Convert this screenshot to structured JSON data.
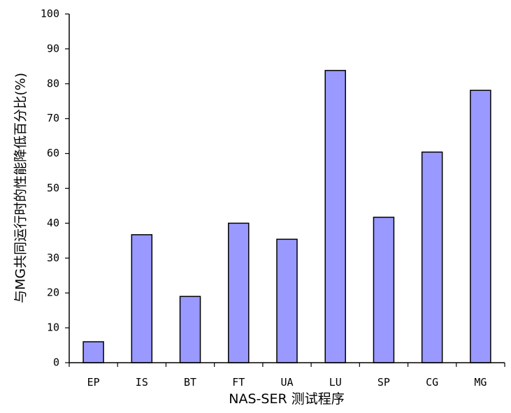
{
  "chart_data": {
    "type": "bar",
    "categories": [
      "EP",
      "IS",
      "BT",
      "FT",
      "UA",
      "LU",
      "SP",
      "CG",
      "MG"
    ],
    "values": [
      6,
      36.7,
      19,
      40,
      35.4,
      83.8,
      41.7,
      60.4,
      78.1
    ],
    "xlabel": "NAS-SER 测试程序",
    "ylabel": "与MG共同运行时的性能降低百分比(%)",
    "ylim": [
      0,
      100
    ],
    "yticks": [
      0,
      10,
      20,
      30,
      40,
      50,
      60,
      70,
      80,
      90,
      100
    ],
    "grid": false,
    "legend": "none",
    "bar_color": "#9999ff",
    "bar_edge_color": "#000000"
  }
}
